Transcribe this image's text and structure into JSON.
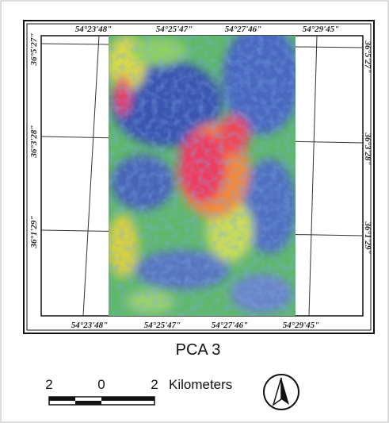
{
  "map": {
    "title": "PCA 3",
    "top_labels": [
      "54°23'48\"",
      "54°25'47\"",
      "54°27'46\"",
      "54°29'45\""
    ],
    "bottom_labels": [
      "54°23'48\"",
      "54°25'47\"",
      "54°27'46\"",
      "54°29'45\""
    ],
    "left_labels": [
      "36°5'27\"",
      "36°3'28\"",
      "36°1'29\""
    ],
    "right_labels": [
      "36°5'27\"",
      "36°3'28\"",
      "36°1'29\""
    ],
    "scale_bar": {
      "ticks": [
        "2",
        "0",
        "2"
      ],
      "unit": "Kilometers"
    }
  }
}
